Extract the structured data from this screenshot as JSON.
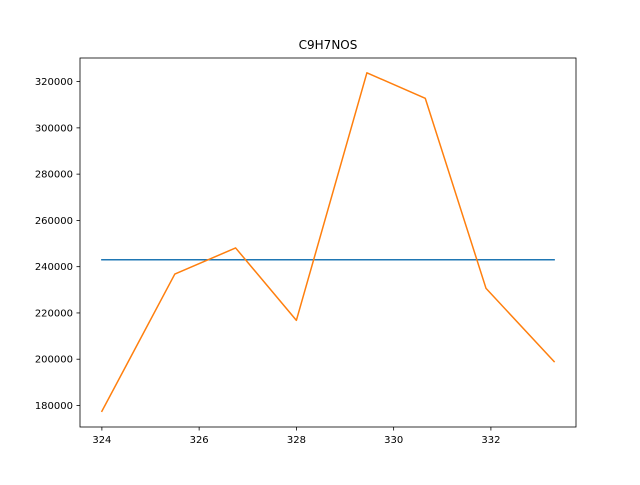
{
  "chart_data": {
    "type": "line",
    "title": "C9H7NOS",
    "xlabel": "",
    "ylabel": "",
    "xlim": [
      323.55,
      333.75
    ],
    "ylim": [
      170700,
      330200
    ],
    "x_ticks": [
      324,
      326,
      328,
      330,
      332
    ],
    "y_ticks": [
      180000,
      200000,
      220000,
      240000,
      260000,
      280000,
      300000,
      320000
    ],
    "x_tick_labels": [
      "324",
      "326",
      "328",
      "330",
      "332"
    ],
    "y_tick_labels": [
      "180000",
      "200000",
      "220000",
      "240000",
      "260000",
      "280000",
      "300000",
      "320000"
    ],
    "grid": false,
    "series": [
      {
        "color": "#1f77b4",
        "x": [
          324.0,
          333.3
        ],
        "y": [
          243000,
          243000
        ]
      },
      {
        "color": "#ff7f0e",
        "x": [
          324.0,
          325.5,
          326.75,
          328.0,
          329.45,
          330.65,
          331.9,
          333.3
        ],
        "y": [
          177500,
          236800,
          248100,
          216800,
          323800,
          312800,
          230600,
          199000
        ]
      }
    ]
  }
}
